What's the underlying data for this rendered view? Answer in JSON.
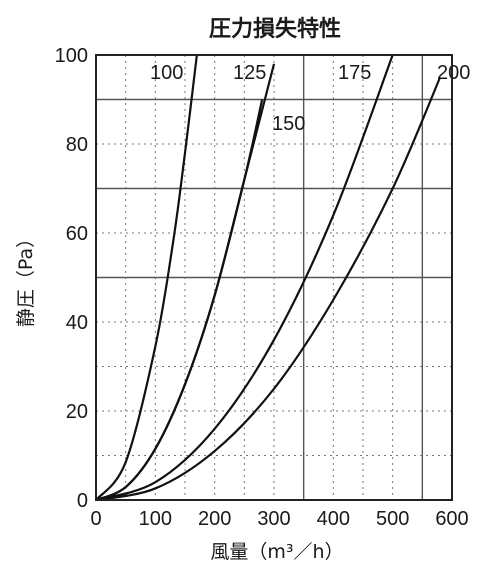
{
  "chart_data": {
    "type": "line",
    "title": "圧力損失特性",
    "xlabel": "風量（m³／h）",
    "ylabel": "静圧（Pa）",
    "xlim": [
      0,
      600
    ],
    "ylim": [
      0,
      100
    ],
    "x_ticks": [
      "0",
      "100",
      "200",
      "300",
      "400",
      "500",
      "600"
    ],
    "y_ticks": [
      "0",
      "20",
      "40",
      "60",
      "80",
      "100"
    ],
    "grid": true,
    "series": [
      {
        "name": "100",
        "x": [
          0,
          50,
          100,
          130,
          150,
          170
        ],
        "y": [
          0,
          8.5,
          34.5,
          58,
          78,
          100
        ]
      },
      {
        "name": "125",
        "x": [
          0,
          50,
          100,
          150,
          200,
          250,
          300
        ],
        "y": [
          0,
          2.9,
          11.5,
          26,
          46,
          72,
          98
        ]
      },
      {
        "name": "150",
        "x": [
          0,
          50,
          100,
          150,
          200,
          250,
          280
        ],
        "y": [
          0,
          2.9,
          11.5,
          26,
          46,
          72,
          90
        ]
      },
      {
        "name": "175",
        "x": [
          0,
          100,
          200,
          300,
          400,
          500
        ],
        "y": [
          0,
          4,
          16,
          36,
          64,
          100
        ]
      },
      {
        "name": "200",
        "x": [
          0,
          100,
          200,
          300,
          400,
          500,
          580
        ],
        "y": [
          0,
          2.6,
          11,
          25,
          45,
          70,
          95
        ]
      }
    ]
  }
}
